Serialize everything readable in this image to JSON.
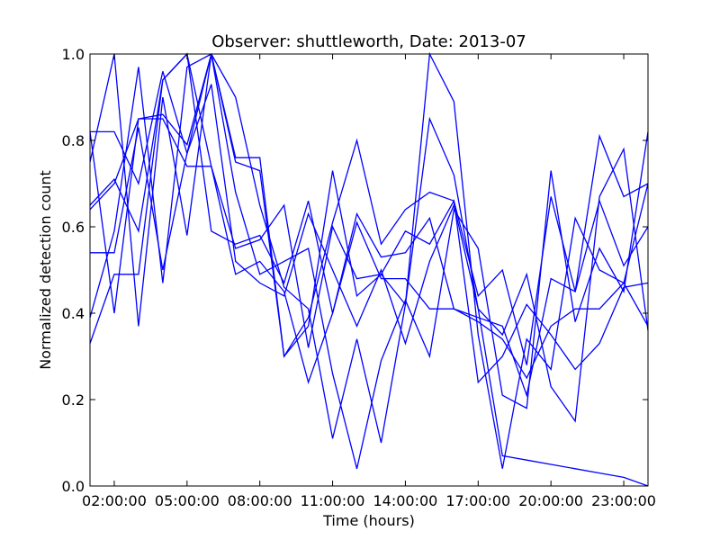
{
  "chart_data": {
    "type": "line",
    "title": "Observer: shuttleworth, Date: 2013-07",
    "xlabel": "Time (hours)",
    "ylabel": "Normalized detection count",
    "xlim": [
      1,
      24
    ],
    "ylim": [
      0,
      1
    ],
    "x_ticks": [
      {
        "value": 2,
        "label": "02:00:00"
      },
      {
        "value": 5,
        "label": "05:00:00"
      },
      {
        "value": 8,
        "label": "08:00:00"
      },
      {
        "value": 11,
        "label": "11:00:00"
      },
      {
        "value": 14,
        "label": "14:00:00"
      },
      {
        "value": 17,
        "label": "17:00:00"
      },
      {
        "value": 20,
        "label": "20:00:00"
      },
      {
        "value": 23,
        "label": "23:00:00"
      }
    ],
    "y_ticks": [
      {
        "value": 0.0,
        "label": "0.0"
      },
      {
        "value": 0.2,
        "label": "0.2"
      },
      {
        "value": 0.4,
        "label": "0.4"
      },
      {
        "value": 0.6,
        "label": "0.6"
      },
      {
        "value": 0.8,
        "label": "0.8"
      },
      {
        "value": 1.0,
        "label": "1.0"
      }
    ],
    "grid": false,
    "line_color": "#0000ff",
    "x": [
      1,
      2,
      3,
      4,
      5,
      6,
      7,
      8,
      9,
      10,
      11,
      12,
      13,
      14,
      15,
      16,
      17,
      18,
      19,
      20,
      21,
      22,
      23,
      24
    ],
    "series": [
      {
        "values": [
          0.82,
          0.82,
          0.7,
          0.96,
          0.77,
          1.0,
          0.76,
          0.76,
          0.3,
          0.39,
          0.61,
          0.8,
          0.56,
          0.64,
          0.68,
          0.66,
          0.44,
          0.5,
          0.28,
          0.67,
          0.45,
          0.81,
          0.67,
          0.7
        ]
      },
      {
        "values": [
          0.54,
          0.54,
          0.83,
          0.5,
          0.77,
          0.93,
          0.52,
          0.47,
          0.44,
          0.63,
          0.5,
          0.37,
          0.5,
          0.33,
          0.52,
          0.65,
          0.41,
          0.07,
          0.06,
          0.05,
          0.04,
          0.03,
          0.02,
          0.0
        ]
      },
      {
        "values": [
          0.64,
          0.7,
          0.85,
          0.85,
          0.74,
          0.74,
          0.49,
          0.52,
          0.45,
          0.24,
          0.4,
          0.61,
          0.48,
          0.48,
          0.41,
          0.41,
          0.38,
          0.34,
          0.25,
          0.37,
          0.41,
          0.41,
          0.47,
          0.37
        ]
      },
      {
        "values": [
          0.33,
          0.49,
          0.49,
          0.94,
          1.0,
          0.74,
          0.55,
          0.57,
          0.65,
          0.32,
          0.6,
          0.48,
          0.49,
          0.59,
          0.56,
          0.66,
          0.24,
          0.3,
          0.42,
          0.35,
          0.27,
          0.33,
          0.46,
          0.47
        ]
      },
      {
        "values": [
          0.82,
          0.4,
          0.85,
          0.86,
          0.79,
          1.0,
          0.75,
          0.73,
          0.3,
          0.37,
          0.73,
          0.44,
          0.49,
          0.42,
          1.0,
          0.89,
          0.35,
          0.04,
          0.34,
          0.27,
          0.62,
          0.5,
          0.47,
          0.7
        ]
      },
      {
        "values": [
          0.75,
          1.0,
          0.37,
          0.9,
          0.58,
          1.0,
          0.68,
          0.49,
          0.52,
          0.55,
          0.26,
          0.04,
          0.29,
          0.43,
          0.3,
          0.64,
          0.55,
          0.21,
          0.18,
          0.73,
          0.38,
          0.55,
          0.45,
          0.82
        ]
      },
      {
        "values": [
          0.39,
          0.59,
          0.97,
          0.47,
          0.97,
          1.0,
          0.9,
          0.65,
          0.46,
          0.41,
          0.11,
          0.34,
          0.1,
          0.42,
          0.85,
          0.72,
          0.41,
          0.35,
          0.49,
          0.23,
          0.15,
          0.67,
          0.78,
          0.36
        ]
      },
      {
        "values": [
          0.65,
          0.71,
          0.59,
          0.94,
          1.0,
          0.59,
          0.56,
          0.58,
          0.47,
          0.66,
          0.4,
          0.63,
          0.53,
          0.54,
          0.62,
          0.41,
          0.39,
          0.37,
          0.21,
          0.48,
          0.45,
          0.66,
          0.51,
          0.6
        ]
      }
    ]
  }
}
